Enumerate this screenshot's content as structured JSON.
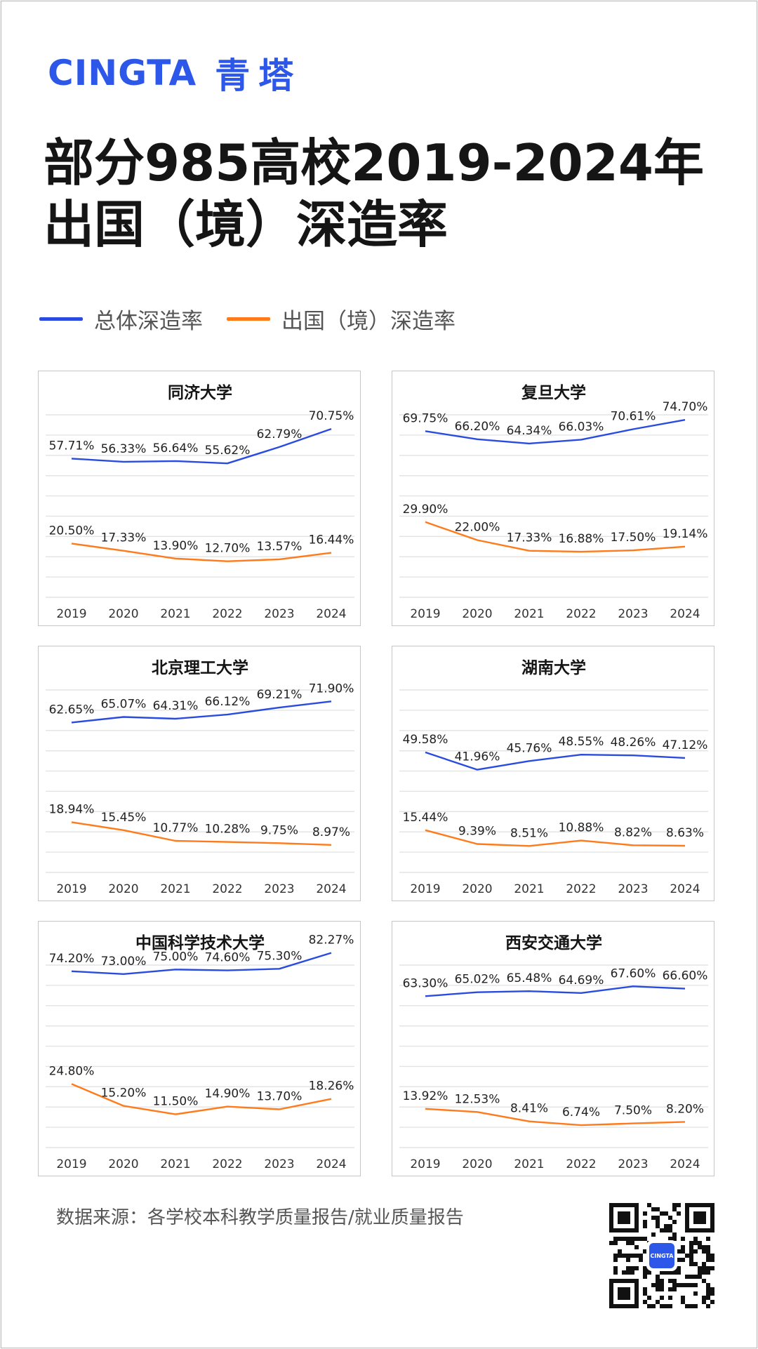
{
  "brand": {
    "name_en": "CINGTA",
    "name_cn": "青塔"
  },
  "title_line1": "部分985高校2019-2024年",
  "title_line2": "出国（境）深造率",
  "legend": [
    {
      "label": "总体深造率",
      "color": "#2a4be0"
    },
    {
      "label": "出国（境）深造率",
      "color": "#ff7a1a"
    }
  ],
  "chart_data": [
    {
      "type": "line",
      "title": "同济大学",
      "categories": [
        "2019",
        "2020",
        "2021",
        "2022",
        "2023",
        "2024"
      ],
      "series": [
        {
          "name": "总体深造率",
          "values": [
            57.71,
            56.33,
            56.64,
            55.62,
            62.79,
            70.75
          ],
          "labels": [
            "57.71%",
            "56.33%",
            "56.64%",
            "55.62%",
            "62.79%",
            "70.75%"
          ]
        },
        {
          "name": "出国（境）深造率",
          "values": [
            20.5,
            17.33,
            13.9,
            12.7,
            13.57,
            16.44
          ],
          "labels": [
            "20.50%",
            "17.33%",
            "13.90%",
            "12.70%",
            "13.57%",
            "16.44%"
          ]
        }
      ]
    },
    {
      "type": "line",
      "title": "复旦大学",
      "categories": [
        "2019",
        "2020",
        "2021",
        "2022",
        "2023",
        "2024"
      ],
      "series": [
        {
          "name": "总体深造率",
          "values": [
            69.75,
            66.2,
            64.34,
            66.03,
            70.61,
            74.7
          ],
          "labels": [
            "69.75%",
            "66.20%",
            "64.34%",
            "66.03%",
            "70.61%",
            "74.70%"
          ]
        },
        {
          "name": "出国（境）深造率",
          "values": [
            29.9,
            22.0,
            17.33,
            16.88,
            17.5,
            19.14
          ],
          "labels": [
            "29.90%",
            "22.00%",
            "17.33%",
            "16.88%",
            "17.50%",
            "19.14%"
          ]
        }
      ]
    },
    {
      "type": "line",
      "title": "北京理工大学",
      "categories": [
        "2019",
        "2020",
        "2021",
        "2022",
        "2023",
        "2024"
      ],
      "series": [
        {
          "name": "总体深造率",
          "values": [
            62.65,
            65.07,
            64.31,
            66.12,
            69.21,
            71.9
          ],
          "labels": [
            "62.65%",
            "65.07%",
            "64.31%",
            "66.12%",
            "69.21%",
            "71.90%"
          ]
        },
        {
          "name": "出国（境）深造率",
          "values": [
            18.94,
            15.45,
            10.77,
            10.28,
            9.75,
            8.97
          ],
          "labels": [
            "18.94%",
            "15.45%",
            "10.77%",
            "10.28%",
            "9.75%",
            "8.97%"
          ]
        }
      ]
    },
    {
      "type": "line",
      "title": "湖南大学",
      "categories": [
        "2019",
        "2020",
        "2021",
        "2022",
        "2023",
        "2024"
      ],
      "series": [
        {
          "name": "总体深造率",
          "values": [
            49.58,
            41.96,
            45.76,
            48.55,
            48.26,
            47.12
          ],
          "labels": [
            "49.58%",
            "41.96%",
            "45.76%",
            "48.55%",
            "48.26%",
            "47.12%"
          ]
        },
        {
          "name": "出国（境）深造率",
          "values": [
            15.44,
            9.39,
            8.51,
            10.88,
            8.82,
            8.63
          ],
          "labels": [
            "15.44%",
            "9.39%",
            "8.51%",
            "10.88%",
            "8.82%",
            "8.63%"
          ]
        }
      ]
    },
    {
      "type": "line",
      "title": "中国科学技术大学",
      "categories": [
        "2019",
        "2020",
        "2021",
        "2022",
        "2023",
        "2024"
      ],
      "series": [
        {
          "name": "总体深造率",
          "values": [
            74.2,
            73.0,
            75.0,
            74.6,
            75.3,
            82.27
          ],
          "labels": [
            "74.20%",
            "73.00%",
            "75.00%",
            "74.60%",
            "75.30%",
            "82.27%"
          ]
        },
        {
          "name": "出国（境）深造率",
          "values": [
            24.8,
            15.2,
            11.5,
            14.9,
            13.7,
            18.26
          ],
          "labels": [
            "24.80%",
            "15.20%",
            "11.50%",
            "14.90%",
            "13.70%",
            "18.26%"
          ]
        }
      ]
    },
    {
      "type": "line",
      "title": "西安交通大学",
      "categories": [
        "2019",
        "2020",
        "2021",
        "2022",
        "2023",
        "2024"
      ],
      "series": [
        {
          "name": "总体深造率",
          "values": [
            63.3,
            65.02,
            65.48,
            64.69,
            67.6,
            66.6
          ],
          "labels": [
            "63.30%",
            "65.02%",
            "65.48%",
            "64.69%",
            "67.60%",
            "66.60%"
          ]
        },
        {
          "name": "出国（境）深造率",
          "values": [
            13.92,
            12.53,
            8.41,
            6.74,
            7.5,
            8.2
          ],
          "labels": [
            "13.92%",
            "12.53%",
            "8.41%",
            "6.74%",
            "7.50%",
            "8.20%"
          ]
        }
      ]
    }
  ],
  "footer": {
    "source": "数据来源：各学校本科教学质量报告/就业质量报告",
    "qr_label": "CINGTA"
  }
}
